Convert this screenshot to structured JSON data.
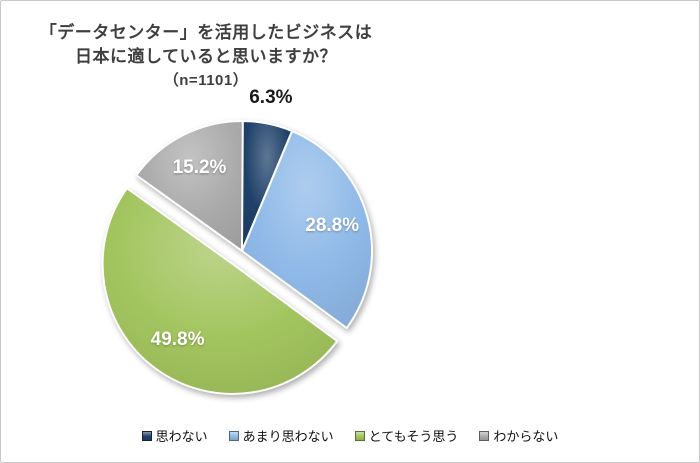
{
  "title": {
    "line1": "「データセンター」を活用したビジネスは",
    "line2": "日本に適していると思いますか？",
    "line3": "（n=1101）",
    "color": "#3f3f3f"
  },
  "chart_data": {
    "type": "pie",
    "title": "「データセンター」を活用したビジネスは日本に適していると思いますか？",
    "sample_size_label": "（n=1101）",
    "n": 1101,
    "categories": [
      "思わない",
      "あまり思わない",
      "とてもそう思う",
      "わからない"
    ],
    "values": [
      6.3,
      28.8,
      49.8,
      15.2
    ],
    "labels": [
      "6.3%",
      "28.8%",
      "49.8%",
      "15.2%"
    ],
    "colors": [
      "#1f4169",
      "#8fb9e8",
      "#a3c55f",
      "#ababab"
    ],
    "start_angle_deg": 0,
    "direction": "clockwise",
    "exploded_index": 2,
    "legend_position": "bottom",
    "grid": false
  },
  "legend": {
    "items": [
      {
        "label": "思わない",
        "color": "#1f4169"
      },
      {
        "label": "あまり思わない",
        "color": "#8fb9e8"
      },
      {
        "label": "とてもそう思う",
        "color": "#a3c55f"
      },
      {
        "label": "わからない",
        "color": "#ababab"
      }
    ]
  }
}
